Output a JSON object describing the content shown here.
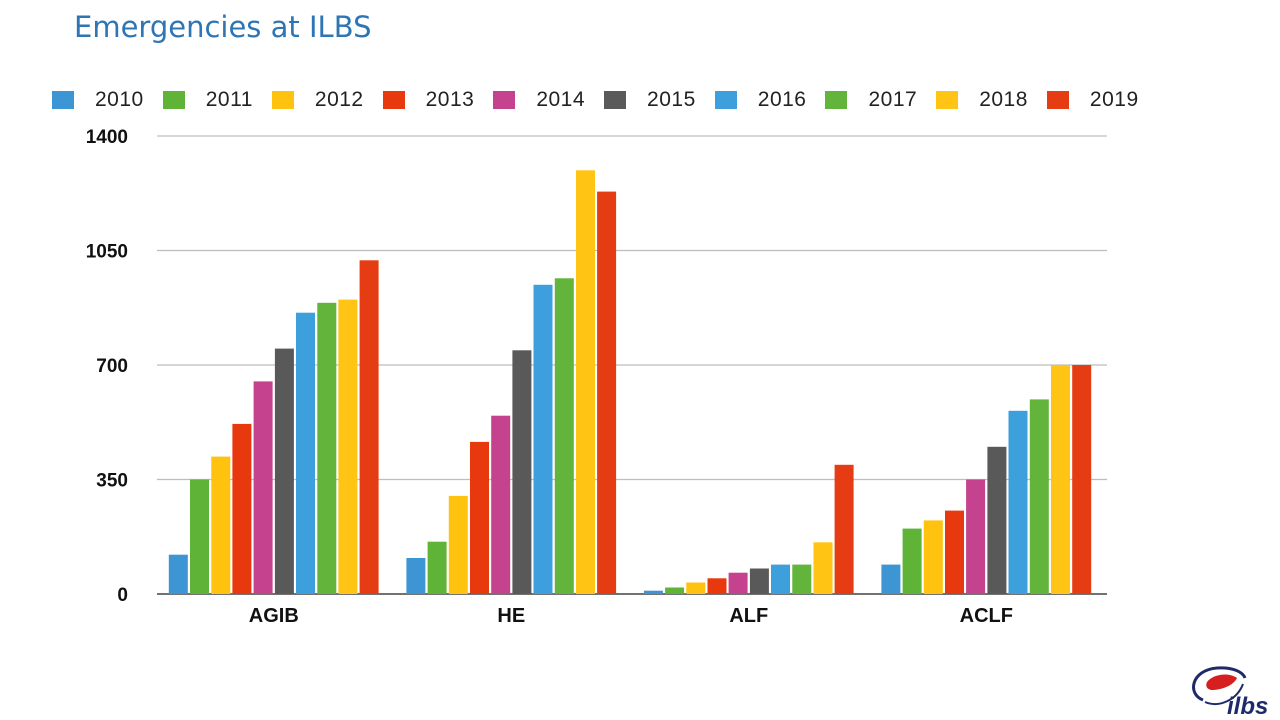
{
  "slide": {
    "title": "Emergencies at ILBS"
  },
  "logo": {
    "text": "ilbs"
  },
  "colors": [
    "#3d95d3",
    "#5fb336",
    "#ffc20e",
    "#e8380d",
    "#c4428e",
    "#595959",
    "#3d9fdc",
    "#62b43a",
    "#ffc414",
    "#e63c13"
  ],
  "chart_data": {
    "type": "bar",
    "title": "",
    "xlabel": "",
    "ylabel": "",
    "ylim": [
      0,
      1400
    ],
    "yticks": [
      "0",
      "350",
      "700",
      "1050",
      "1400"
    ],
    "grid": true,
    "legend_position": "top",
    "categories": [
      "AGIB",
      "HE",
      "ALF",
      "ACLF"
    ],
    "series": [
      {
        "name": "2010",
        "values": [
          120,
          110,
          10,
          90
        ]
      },
      {
        "name": "2011",
        "values": [
          350,
          160,
          20,
          200
        ]
      },
      {
        "name": "2012",
        "values": [
          420,
          300,
          35,
          225
        ]
      },
      {
        "name": "2013",
        "values": [
          520,
          465,
          48,
          255
        ]
      },
      {
        "name": "2014",
        "values": [
          650,
          545,
          65,
          350
        ]
      },
      {
        "name": "2015",
        "values": [
          750,
          745,
          78,
          450
        ]
      },
      {
        "name": "2016",
        "values": [
          860,
          945,
          90,
          560
        ]
      },
      {
        "name": "2017",
        "values": [
          890,
          965,
          90,
          595
        ]
      },
      {
        "name": "2018",
        "values": [
          900,
          1295,
          158,
          700
        ]
      },
      {
        "name": "2019",
        "values": [
          1020,
          1230,
          395,
          700
        ]
      }
    ]
  }
}
